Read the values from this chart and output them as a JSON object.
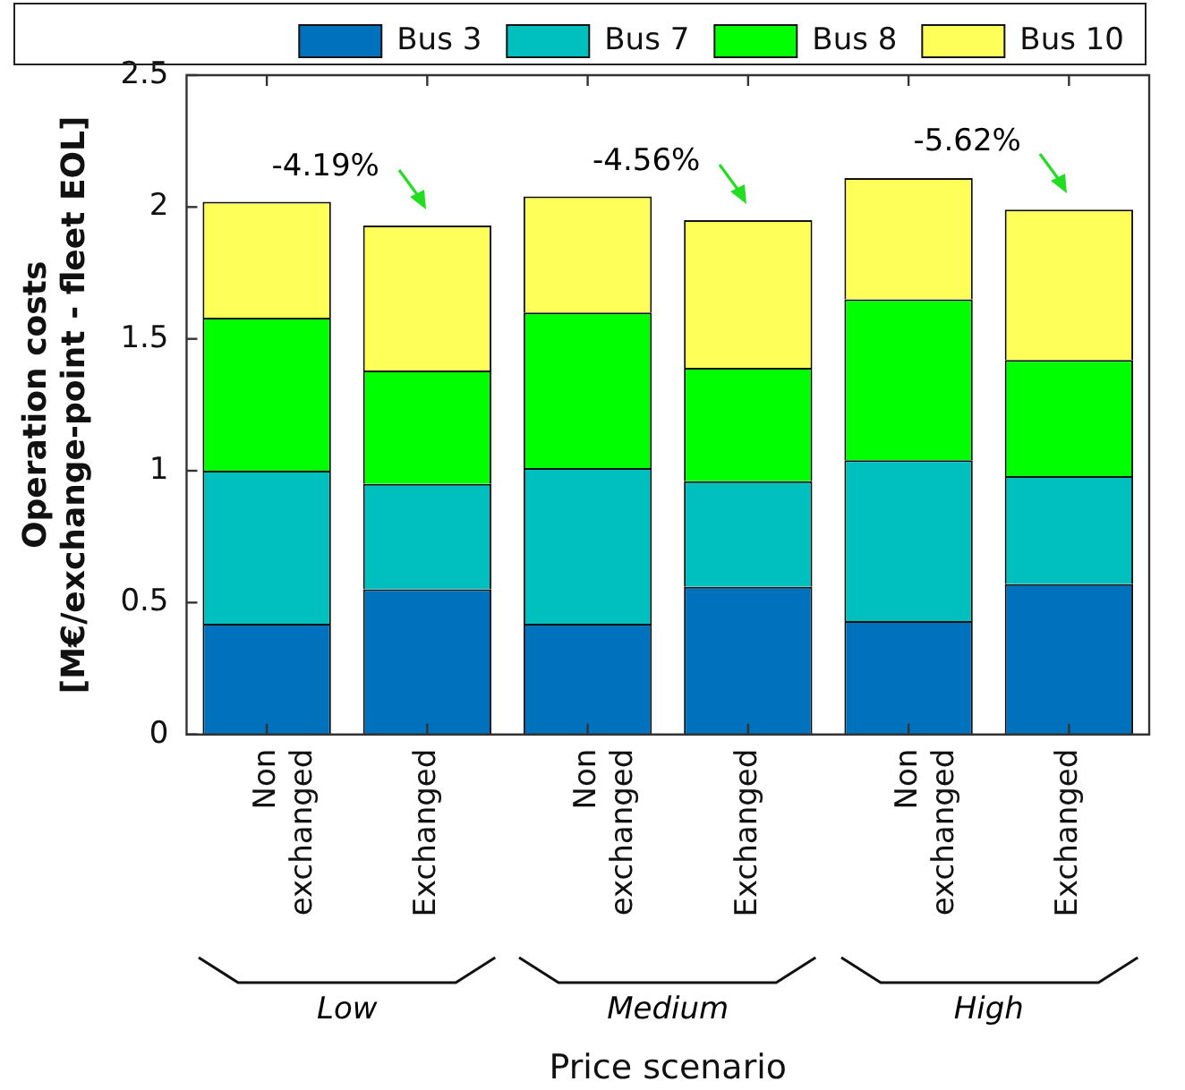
{
  "chart_data": {
    "type": "bar",
    "stacked": true,
    "xlabel": "Price scenario",
    "ylabel": "Operation costs [M€/exchange-point - fleet EOL]",
    "categories": [
      "Non exchanged",
      "Exchanged",
      "Non exchanged",
      "Exchanged",
      "Non exchanged",
      "Exchanged"
    ],
    "series": [
      {
        "name": "Bus 3",
        "color": "#0072bd",
        "values": [
          0.42,
          0.55,
          0.42,
          0.56,
          0.43,
          0.57
        ]
      },
      {
        "name": "Bus 7",
        "color": "#00bfbf",
        "values": [
          0.58,
          0.4,
          0.59,
          0.4,
          0.61,
          0.41
        ]
      },
      {
        "name": "Bus 8",
        "color": "#00ff00",
        "values": [
          0.58,
          0.43,
          0.59,
          0.43,
          0.61,
          0.44
        ]
      },
      {
        "name": "Bus 10",
        "color": "#ffff5a",
        "values": [
          0.44,
          0.55,
          0.44,
          0.56,
          0.46,
          0.57
        ]
      }
    ],
    "ylim": [
      0,
      2.5
    ],
    "yticks": [
      0,
      0.5,
      1,
      1.5,
      2,
      2.5
    ],
    "grid": false,
    "legend": "top",
    "annotations": [
      "-4.19%",
      "-4.56%",
      "-5.62%",
      "Low",
      "Medium",
      "High"
    ]
  }
}
